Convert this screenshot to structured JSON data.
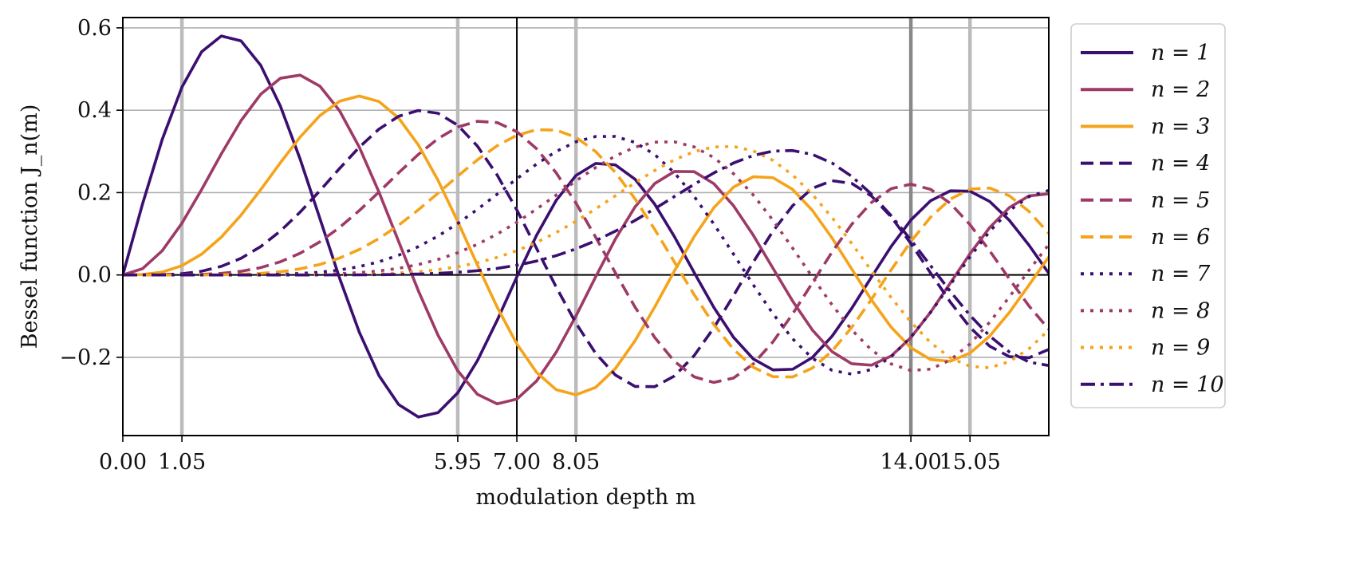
{
  "chart_data": {
    "type": "line",
    "xlabel": "modulation depth m",
    "ylabel": "Bessel function J_n(m)",
    "xlim": [
      0,
      16.45
    ],
    "ylim": [
      -0.39,
      0.625
    ],
    "x_ticks": [
      0.0,
      1.05,
      5.95,
      7.0,
      8.05,
      14.0,
      15.05
    ],
    "x_tick_labels": [
      "0.00",
      "1.05",
      "5.95",
      "7.00",
      "8.05",
      "14.00",
      "15.05"
    ],
    "y_ticks": [
      -0.2,
      0.0,
      0.2,
      0.4,
      0.6
    ],
    "y_tick_labels": [
      "−0.2",
      "0.0",
      "0.2",
      "0.4",
      "0.6"
    ],
    "grid": "horizontal",
    "vertical_reference_lines": [
      {
        "x": 1.05,
        "color": "#bbbbbb"
      },
      {
        "x": 5.95,
        "color": "#bbbbbb"
      },
      {
        "x": 7.0,
        "color": "#000000"
      },
      {
        "x": 8.05,
        "color": "#bbbbbb"
      },
      {
        "x": 14.0,
        "color": "#888888"
      },
      {
        "x": 15.05,
        "color": "#bbbbbb"
      }
    ],
    "horizontal_reference_line": {
      "y": 0.0,
      "color": "#000000"
    },
    "x_sampling": {
      "start": 0.0,
      "end": 16.45,
      "step": 0.35
    },
    "series": [
      {
        "name": "n = 1",
        "n": 1,
        "color": "#3b0f70",
        "dash": "solid"
      },
      {
        "name": "n = 2",
        "n": 2,
        "color": "#9e3a66",
        "dash": "solid"
      },
      {
        "name": "n = 3",
        "n": 3,
        "color": "#f5a31a",
        "dash": "solid"
      },
      {
        "name": "n = 4",
        "n": 4,
        "color": "#3b0f70",
        "dash": "dashed"
      },
      {
        "name": "n = 5",
        "n": 5,
        "color": "#9e3a66",
        "dash": "dashed"
      },
      {
        "name": "n = 6",
        "n": 6,
        "color": "#f5a31a",
        "dash": "dashed"
      },
      {
        "name": "n = 7",
        "n": 7,
        "color": "#3b0f70",
        "dash": "dotted"
      },
      {
        "name": "n = 8",
        "n": 8,
        "color": "#9e3a66",
        "dash": "dotted"
      },
      {
        "name": "n = 9",
        "n": 9,
        "color": "#f5a31a",
        "dash": "dotted"
      },
      {
        "name": "n = 10",
        "n": 10,
        "color": "#3b0f70",
        "dash": "dashdot"
      }
    ],
    "legend": {
      "position": "right-outside-top",
      "entries": [
        "n = 1",
        "n = 2",
        "n = 3",
        "n = 4",
        "n = 5",
        "n = 6",
        "n = 7",
        "n = 8",
        "n = 9",
        "n = 10"
      ]
    }
  }
}
